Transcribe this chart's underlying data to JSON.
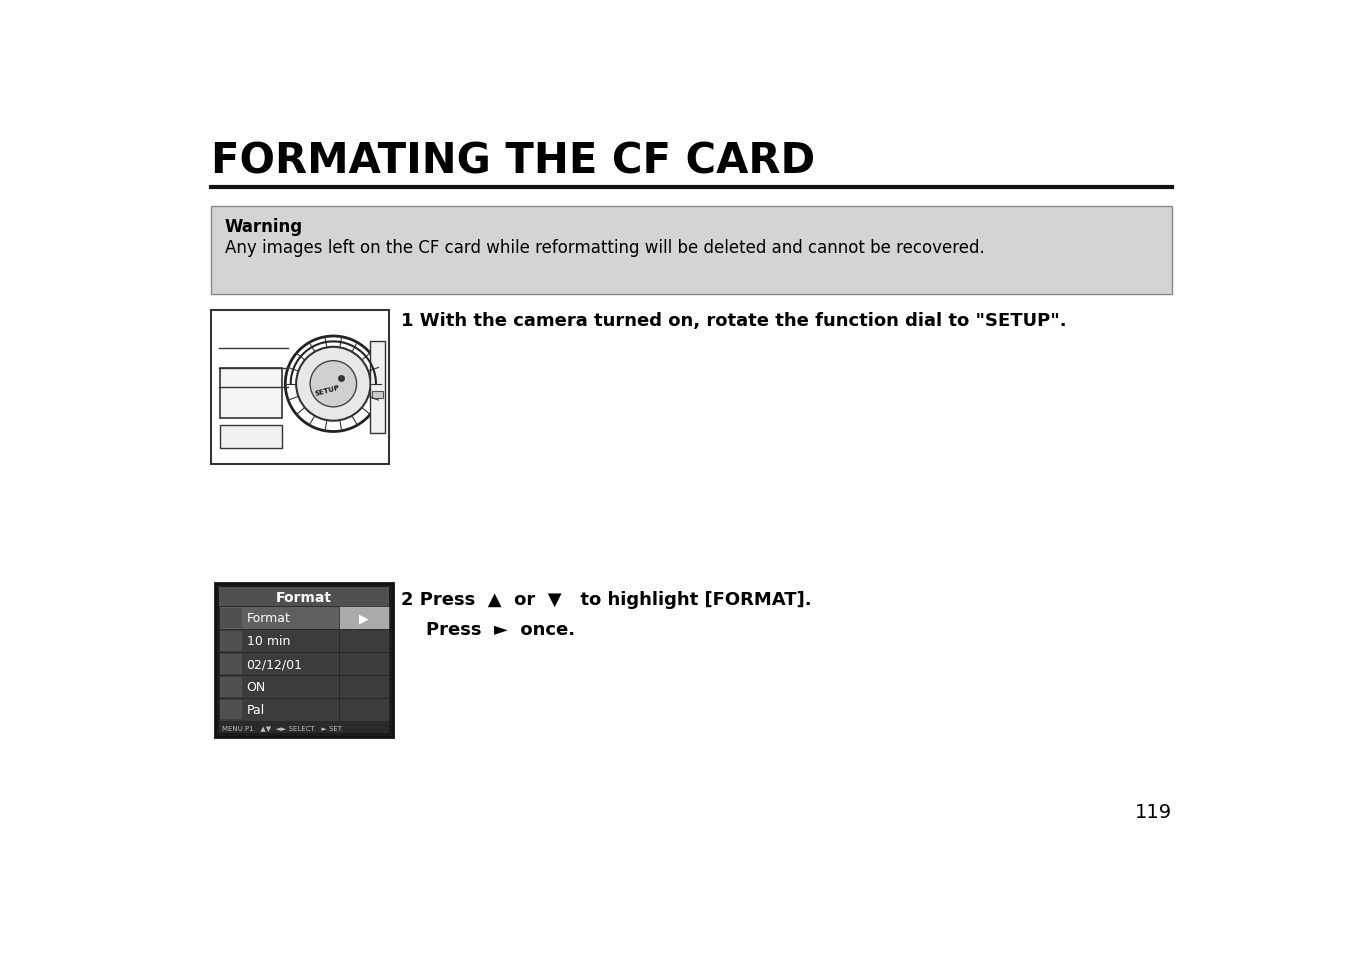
{
  "title": "FORMATING THE CF CARD",
  "warning_label": "Warning",
  "warning_text": "Any images left on the CF card while reformatting will be deleted and cannot be recovered.",
  "step1_text": "1 With the camera turned on, rotate the function dial to \"SETUP\".",
  "step2_line1": "2 Press  ▲  or  ▼   to highlight [FORMAT].",
  "step2_line2": "    Press  ►  once.",
  "page_number": "119",
  "bg_color": "#ffffff",
  "title_color": "#000000",
  "warning_bg": "#d4d4d4",
  "menu_title": "Format",
  "menu_items": [
    "Format",
    "10 min",
    "02/12/01",
    "ON",
    "Pal"
  ],
  "menu_bg_dark": "#3c3c3c",
  "menu_title_bg": "#555555",
  "menu_selected_bg": "#666666",
  "menu_right_bg": "#aaaaaa",
  "menu_text_color": "#ffffff",
  "footer_text": "MENU P1   ▲▼  ◄► SELECT   ► SET"
}
